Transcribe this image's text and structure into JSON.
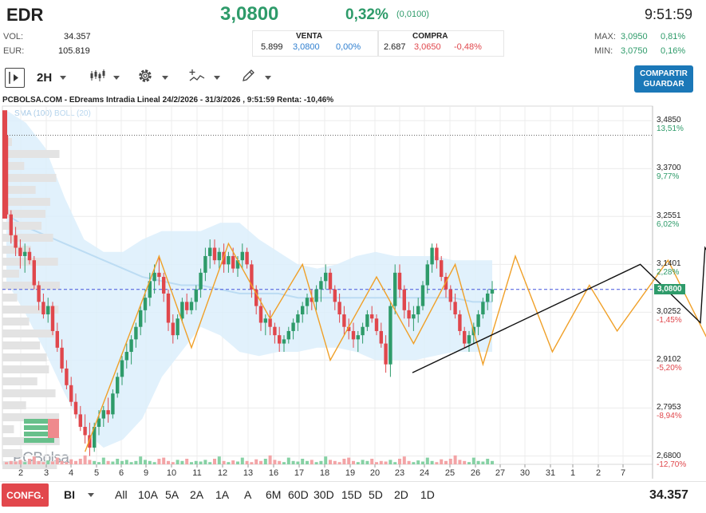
{
  "header": {
    "symbol": "EDR",
    "price": "3,0800",
    "change_pct": "0,32%",
    "change_abs": "(0,0100)",
    "time": "9:51:59"
  },
  "stats": {
    "vol_label": "VOL:",
    "vol_value": "34.357",
    "eur_label": "EUR:",
    "eur_value": "105.819",
    "venta_label": "VENTA",
    "venta_qty": "5.899",
    "venta_price": "3,0800",
    "venta_pct": "0,00%",
    "compra_label": "COMPRA",
    "compra_qty": "2.687",
    "compra_price": "3,0650",
    "compra_pct": "-0,48%",
    "max_label": "MAX:",
    "max_value": "3,0950",
    "max_pct": "0,81%",
    "min_label": "MIN:",
    "min_value": "3,0750",
    "min_pct": "0,16%"
  },
  "toolbar": {
    "interval": "2H",
    "share_line1": "COMPARTIR",
    "share_line2": "GUARDAR",
    "icons": [
      "panel-toggle-icon",
      "candles-icon",
      "settings-gear-icon",
      "indicators-icon",
      "drawing-pencil-icon"
    ]
  },
  "chart_title": "PCBOLSA.COM - EDreams Intradia Lineal 24/2/2026 - 31/3/2026 , 9:51:59 Renta: -10,46%",
  "legend": {
    "sma": "SMA (100)",
    "boll": "BOLL (20)"
  },
  "watermark": "PCBolsa",
  "chart_data": {
    "type": "candlestick",
    "title": "PCBOLSA.COM - EDreams Intradia Lineal 24/2/2026 - 31/3/2026 , 9:51:59 Renta: -10,46%",
    "x_tick_labels": [
      "2",
      "3",
      "4",
      "5",
      "6",
      "9",
      "10",
      "11",
      "12",
      "13",
      "16",
      "17",
      "18",
      "19",
      "20",
      "23",
      "24",
      "25",
      "26",
      "27",
      "30",
      "31",
      "1",
      "2",
      "7"
    ],
    "y_ticks": [
      {
        "price": "3,4850",
        "pct": "13,51%",
        "sign": "pos"
      },
      {
        "price": "3,3700",
        "pct": "9,77%",
        "sign": "pos"
      },
      {
        "price": "3,2551",
        "pct": "6,02%",
        "sign": "pos"
      },
      {
        "price": "3,1401",
        "pct": "2,28%",
        "sign": "pos"
      },
      {
        "price": "3,0252",
        "pct": "-1,45%",
        "sign": "neg"
      },
      {
        "price": "2,9102",
        "pct": "-5,20%",
        "sign": "neg"
      },
      {
        "price": "2,7953",
        "pct": "-8,94%",
        "sign": "neg"
      },
      {
        "price": "2,6800",
        "pct": "-12,70%",
        "sign": "neg"
      }
    ],
    "current_price": "3,0800",
    "reference_level": 3.45,
    "ylim": [
      2.66,
      3.52
    ],
    "candles": [
      [
        3.45,
        3.51,
        3.25,
        3.26
      ],
      [
        3.26,
        3.27,
        3.19,
        3.21
      ],
      [
        3.21,
        3.23,
        3.16,
        3.18
      ],
      [
        3.18,
        3.2,
        3.13,
        3.16
      ],
      [
        3.16,
        3.19,
        3.12,
        3.17
      ],
      [
        3.17,
        3.18,
        3.14,
        3.15
      ],
      [
        3.15,
        3.16,
        3.08,
        3.09
      ],
      [
        3.09,
        3.1,
        3.03,
        3.05
      ],
      [
        3.05,
        3.07,
        3.01,
        3.02
      ],
      [
        3.02,
        3.06,
        3.0,
        3.04
      ],
      [
        3.04,
        3.05,
        2.97,
        2.98
      ],
      [
        2.98,
        3.0,
        2.93,
        2.94
      ],
      [
        2.94,
        2.96,
        2.88,
        2.89
      ],
      [
        2.89,
        2.91,
        2.84,
        2.85
      ],
      [
        2.85,
        2.87,
        2.8,
        2.81
      ],
      [
        2.81,
        2.83,
        2.77,
        2.78
      ],
      [
        2.78,
        2.8,
        2.74,
        2.75
      ],
      [
        2.75,
        2.78,
        2.71,
        2.73
      ],
      [
        2.73,
        2.76,
        2.68,
        2.7
      ],
      [
        2.7,
        2.76,
        2.69,
        2.75
      ],
      [
        2.75,
        2.79,
        2.73,
        2.77
      ],
      [
        2.77,
        2.8,
        2.75,
        2.79
      ],
      [
        2.79,
        2.82,
        2.76,
        2.78
      ],
      [
        2.78,
        2.84,
        2.77,
        2.83
      ],
      [
        2.83,
        2.88,
        2.82,
        2.87
      ],
      [
        2.87,
        2.92,
        2.85,
        2.91
      ],
      [
        2.91,
        2.95,
        2.89,
        2.93
      ],
      [
        2.93,
        2.97,
        2.9,
        2.96
      ],
      [
        2.96,
        3.0,
        2.94,
        2.99
      ],
      [
        2.99,
        3.04,
        2.97,
        3.03
      ],
      [
        3.03,
        3.08,
        3.0,
        3.06
      ],
      [
        3.06,
        3.12,
        3.04,
        3.1
      ],
      [
        3.1,
        3.14,
        3.07,
        3.12
      ],
      [
        3.12,
        3.16,
        3.09,
        3.11
      ],
      [
        3.11,
        3.12,
        3.05,
        3.07
      ],
      [
        3.07,
        3.08,
        2.98,
        3.0
      ],
      [
        3.0,
        3.02,
        2.95,
        2.97
      ],
      [
        2.97,
        3.02,
        2.96,
        3.01
      ],
      [
        3.01,
        3.06,
        3.0,
        3.05
      ],
      [
        3.05,
        3.07,
        3.02,
        3.03
      ],
      [
        3.03,
        3.06,
        3.02,
        3.05
      ],
      [
        3.05,
        3.09,
        3.03,
        3.08
      ],
      [
        3.08,
        3.13,
        3.06,
        3.12
      ],
      [
        3.12,
        3.18,
        3.1,
        3.16
      ],
      [
        3.16,
        3.2,
        3.13,
        3.18
      ],
      [
        3.18,
        3.2,
        3.14,
        3.15
      ],
      [
        3.15,
        3.18,
        3.13,
        3.17
      ],
      [
        3.17,
        3.19,
        3.12,
        3.14
      ],
      [
        3.14,
        3.17,
        3.12,
        3.16
      ],
      [
        3.16,
        3.18,
        3.12,
        3.13
      ],
      [
        3.13,
        3.16,
        3.11,
        3.15
      ],
      [
        3.15,
        3.19,
        3.13,
        3.17
      ],
      [
        3.17,
        3.18,
        3.13,
        3.14
      ],
      [
        3.14,
        3.15,
        3.06,
        3.08
      ],
      [
        3.08,
        3.09,
        3.02,
        3.04
      ],
      [
        3.04,
        3.06,
        2.98,
        3.0
      ],
      [
        3.0,
        3.02,
        2.97,
        3.01
      ],
      [
        3.01,
        3.03,
        2.97,
        2.99
      ],
      [
        2.99,
        3.0,
        2.95,
        2.97
      ],
      [
        2.97,
        2.99,
        2.93,
        2.95
      ],
      [
        2.95,
        2.97,
        2.93,
        2.96
      ],
      [
        2.96,
        2.99,
        2.95,
        2.98
      ],
      [
        2.98,
        3.01,
        2.96,
        3.0
      ],
      [
        3.0,
        3.03,
        2.98,
        3.02
      ],
      [
        3.02,
        3.05,
        3.0,
        3.04
      ],
      [
        3.04,
        3.07,
        3.02,
        3.06
      ],
      [
        3.06,
        3.08,
        3.03,
        3.05
      ],
      [
        3.05,
        3.09,
        3.03,
        3.08
      ],
      [
        3.08,
        3.11,
        3.05,
        3.1
      ],
      [
        3.1,
        3.14,
        3.08,
        3.12
      ],
      [
        3.12,
        3.13,
        3.07,
        3.08
      ],
      [
        3.08,
        3.09,
        3.03,
        3.05
      ],
      [
        3.05,
        3.07,
        3.0,
        3.02
      ],
      [
        3.02,
        3.04,
        2.97,
        2.99
      ],
      [
        2.99,
        3.01,
        2.96,
        2.98
      ],
      [
        2.98,
        3.0,
        2.94,
        2.96
      ],
      [
        2.96,
        2.98,
        2.93,
        2.97
      ],
      [
        2.97,
        3.0,
        2.95,
        2.99
      ],
      [
        2.99,
        3.03,
        2.98,
        3.02
      ],
      [
        3.02,
        3.04,
        3.0,
        3.01
      ],
      [
        3.01,
        3.02,
        2.97,
        2.98
      ],
      [
        2.98,
        3.0,
        2.94,
        2.95
      ],
      [
        2.95,
        2.97,
        2.88,
        2.9
      ],
      [
        2.9,
        3.05,
        2.87,
        3.04
      ],
      [
        3.04,
        3.14,
        3.02,
        3.12
      ],
      [
        3.12,
        3.14,
        3.06,
        3.08
      ],
      [
        3.08,
        3.09,
        3.01,
        3.03
      ],
      [
        3.03,
        3.05,
        2.99,
        3.01
      ],
      [
        3.01,
        3.04,
        2.98,
        3.02
      ],
      [
        3.02,
        3.06,
        3.0,
        3.04
      ],
      [
        3.04,
        3.1,
        3.03,
        3.09
      ],
      [
        3.09,
        3.15,
        3.07,
        3.14
      ],
      [
        3.14,
        3.19,
        3.12,
        3.18
      ],
      [
        3.18,
        3.19,
        3.13,
        3.15
      ],
      [
        3.15,
        3.16,
        3.1,
        3.11
      ],
      [
        3.11,
        3.12,
        3.06,
        3.08
      ],
      [
        3.08,
        3.09,
        3.03,
        3.05
      ],
      [
        3.05,
        3.07,
        3.01,
        3.02
      ],
      [
        3.02,
        3.03,
        2.97,
        2.98
      ],
      [
        2.98,
        2.99,
        2.94,
        2.95
      ],
      [
        2.95,
        2.98,
        2.93,
        2.97
      ],
      [
        2.97,
        3.0,
        2.95,
        2.99
      ],
      [
        2.99,
        3.03,
        2.97,
        3.02
      ],
      [
        3.02,
        3.06,
        3.01,
        3.05
      ],
      [
        3.05,
        3.08,
        3.03,
        3.07
      ],
      [
        3.07,
        3.1,
        3.05,
        3.08
      ]
    ],
    "sma": [
      3.26,
      3.23,
      3.21,
      3.19,
      3.17,
      3.15,
      3.13,
      3.11,
      3.1,
      3.09,
      3.09,
      3.08,
      3.07,
      3.07,
      3.07,
      3.06,
      3.06,
      3.06,
      3.06,
      3.06,
      3.06,
      3.06,
      3.06,
      3.06,
      3.05,
      3.05
    ],
    "boll_upper": [
      3.51,
      3.48,
      3.42,
      3.3,
      3.2,
      3.17,
      3.17,
      3.2,
      3.22,
      3.22,
      3.22,
      3.24,
      3.24,
      3.2,
      3.17,
      3.14,
      3.13,
      3.14,
      3.16,
      3.17,
      3.16,
      3.16,
      3.16,
      3.15,
      3.15,
      3.15
    ],
    "boll_lower": [
      3.1,
      3.02,
      2.93,
      2.83,
      2.74,
      2.7,
      2.72,
      2.77,
      2.87,
      2.93,
      2.99,
      2.97,
      2.93,
      2.92,
      2.93,
      2.93,
      2.94,
      2.94,
      2.93,
      2.91,
      2.91,
      2.91,
      2.92,
      2.93,
      2.93,
      2.93
    ],
    "zigzag": [
      [
        17,
        2.69
      ],
      [
        33,
        3.16
      ],
      [
        40,
        2.94
      ],
      [
        48,
        3.19
      ],
      [
        57,
        3.01
      ],
      [
        64,
        3.14
      ],
      [
        70,
        2.91
      ],
      [
        80,
        3.11
      ],
      [
        88,
        2.95
      ],
      [
        97,
        3.14
      ],
      [
        103,
        2.9
      ],
      [
        110,
        3.16
      ],
      [
        118,
        2.93
      ],
      [
        126,
        3.09
      ],
      [
        132,
        2.98
      ],
      [
        143,
        3.15
      ],
      [
        152,
        2.95
      ],
      [
        156,
        3.02
      ]
    ],
    "projection": [
      [
        136,
        2.88
      ],
      [
        137,
        3.14
      ],
      [
        150,
        3.0
      ],
      [
        151,
        3.18
      ],
      [
        167,
        2.93
      ],
      [
        178,
        3.1
      ],
      [
        186,
        3.19
      ],
      [
        191,
        3.12
      ],
      [
        198,
        3.19
      ],
      [
        207,
        2.96
      ],
      [
        215,
        3.15
      ],
      [
        220,
        2.69
      ]
    ],
    "volumes": [
      0.2,
      0.3,
      0.25,
      0.4,
      0.2,
      0.5,
      0.7,
      0.3,
      0.2,
      0.35,
      0.25,
      0.6,
      0.3,
      0.2,
      0.45,
      0.3,
      0.5,
      0.8,
      0.4,
      0.3,
      0.2,
      0.6,
      0.3,
      0.25,
      0.5,
      0.3,
      0.4,
      0.2,
      0.3,
      0.7,
      0.4,
      0.3,
      0.2,
      0.5,
      0.6,
      0.3,
      0.2,
      0.4,
      0.3,
      0.5
    ]
  },
  "bottom_bar": {
    "config_label": "CONFG.",
    "chart_type": "BI",
    "ranges": [
      "All",
      "10A",
      "5A",
      "2A",
      "1A",
      "A",
      "6M",
      "60D",
      "30D",
      "15D",
      "5D",
      "2D",
      "1D"
    ],
    "volume": "34.357"
  },
  "colors": {
    "up": "#2e9b6a",
    "down": "#e0474c",
    "band": "#dceefb",
    "zigzag": "#f0a028",
    "accent": "#1b78b8"
  }
}
